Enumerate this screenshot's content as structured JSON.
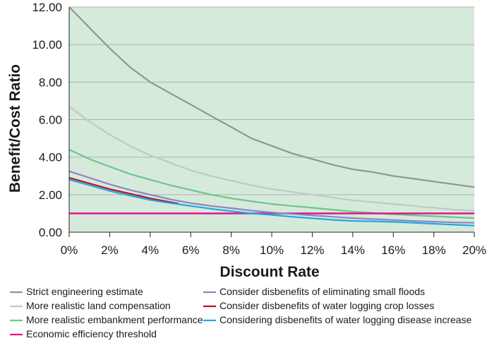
{
  "chart_data": {
    "type": "line",
    "xlabel": "Discount Rate",
    "ylabel": "Benefit/Cost Ratio",
    "xlim": [
      0,
      20
    ],
    "ylim": [
      0,
      12
    ],
    "x_ticks": [
      0,
      2,
      4,
      6,
      8,
      10,
      12,
      14,
      16,
      18,
      20
    ],
    "x_tick_labels": [
      "0%",
      "2%",
      "4%",
      "6%",
      "8%",
      "10%",
      "12%",
      "14%",
      "16%",
      "18%",
      "20%"
    ],
    "y_ticks": [
      0,
      2,
      4,
      6,
      8,
      10,
      12
    ],
    "y_tick_labels": [
      "0.00",
      "2.00",
      "4.00",
      "6.00",
      "8.00",
      "10.00",
      "12.00"
    ],
    "grid": "horizontal",
    "plot_background": "#d6eadb",
    "legend_position": "bottom",
    "series": [
      {
        "name": "Strict engineering estimate",
        "color": "#8e9593",
        "points": [
          [
            0,
            12.0
          ],
          [
            1,
            10.9
          ],
          [
            2,
            9.8
          ],
          [
            3,
            8.8
          ],
          [
            4,
            8.0
          ],
          [
            5,
            7.4
          ],
          [
            6,
            6.8
          ],
          [
            7,
            6.2
          ],
          [
            8,
            5.6
          ],
          [
            9,
            5.0
          ],
          [
            10,
            4.6
          ],
          [
            11,
            4.2
          ],
          [
            12,
            3.9
          ],
          [
            13,
            3.6
          ],
          [
            14,
            3.35
          ],
          [
            15,
            3.2
          ],
          [
            16,
            3.0
          ],
          [
            17,
            2.85
          ],
          [
            18,
            2.7
          ],
          [
            19,
            2.55
          ],
          [
            20,
            2.4
          ]
        ]
      },
      {
        "name": "More realistic land compensation",
        "color": "#c3c7c5",
        "points": [
          [
            0,
            6.7
          ],
          [
            1,
            5.9
          ],
          [
            2,
            5.2
          ],
          [
            3,
            4.6
          ],
          [
            4,
            4.1
          ],
          [
            5,
            3.7
          ],
          [
            6,
            3.3
          ],
          [
            7,
            3.0
          ],
          [
            8,
            2.75
          ],
          [
            9,
            2.5
          ],
          [
            10,
            2.3
          ],
          [
            11,
            2.15
          ],
          [
            12,
            2.0
          ],
          [
            13,
            1.85
          ],
          [
            14,
            1.7
          ],
          [
            15,
            1.6
          ],
          [
            16,
            1.5
          ],
          [
            17,
            1.4
          ],
          [
            18,
            1.3
          ],
          [
            19,
            1.2
          ],
          [
            20,
            1.15
          ]
        ]
      },
      {
        "name": "More realistic embankment performance",
        "color": "#6dc58e",
        "points": [
          [
            0,
            4.4
          ],
          [
            1,
            3.9
          ],
          [
            2,
            3.5
          ],
          [
            3,
            3.1
          ],
          [
            4,
            2.8
          ],
          [
            5,
            2.5
          ],
          [
            6,
            2.25
          ],
          [
            7,
            2.0
          ],
          [
            8,
            1.8
          ],
          [
            9,
            1.65
          ],
          [
            10,
            1.5
          ],
          [
            11,
            1.4
          ],
          [
            12,
            1.3
          ],
          [
            13,
            1.2
          ],
          [
            14,
            1.1
          ],
          [
            15,
            1.02
          ],
          [
            16,
            0.95
          ],
          [
            17,
            0.9
          ],
          [
            18,
            0.85
          ],
          [
            19,
            0.8
          ],
          [
            20,
            0.75
          ]
        ]
      },
      {
        "name": "Economic efficiency threshold",
        "color": "#e2158e",
        "points": [
          [
            0,
            1.0
          ],
          [
            20,
            1.0
          ]
        ]
      },
      {
        "name": "Consider disbenefits of eliminating small floods",
        "color": "#8d86c2",
        "points": [
          [
            0,
            3.25
          ],
          [
            1,
            2.9
          ],
          [
            2,
            2.55
          ],
          [
            3,
            2.25
          ],
          [
            4,
            2.0
          ],
          [
            5,
            1.75
          ],
          [
            6,
            1.55
          ],
          [
            7,
            1.4
          ],
          [
            8,
            1.28
          ],
          [
            9,
            1.15
          ],
          [
            10,
            1.05
          ],
          [
            11,
            0.97
          ],
          [
            12,
            0.9
          ],
          [
            13,
            0.82
          ],
          [
            14,
            0.75
          ],
          [
            15,
            0.7
          ],
          [
            16,
            0.65
          ],
          [
            17,
            0.6
          ],
          [
            18,
            0.56
          ],
          [
            19,
            0.52
          ],
          [
            20,
            0.5
          ]
        ]
      },
      {
        "name": "Consider disbenefits of water logging crop losses",
        "color": "#b2122b",
        "points": [
          [
            0,
            2.9
          ],
          [
            1,
            2.6
          ],
          [
            2,
            2.3
          ],
          [
            3,
            2.05
          ],
          [
            4,
            1.8
          ],
          [
            5,
            1.6
          ],
          [
            5.4,
            1.52
          ]
        ]
      },
      {
        "name": "Considering disbenefits of water logging disease increase",
        "color": "#22a6e2",
        "points": [
          [
            0,
            2.8
          ],
          [
            1,
            2.5
          ],
          [
            2,
            2.2
          ],
          [
            3,
            1.95
          ],
          [
            4,
            1.72
          ],
          [
            5,
            1.55
          ],
          [
            6,
            1.4
          ],
          [
            7,
            1.25
          ],
          [
            8,
            1.12
          ],
          [
            9,
            1.0
          ],
          [
            10,
            0.92
          ],
          [
            11,
            0.82
          ],
          [
            12,
            0.74
          ],
          [
            13,
            0.66
          ],
          [
            14,
            0.6
          ],
          [
            15,
            0.58
          ],
          [
            16,
            0.55
          ],
          [
            17,
            0.5
          ],
          [
            18,
            0.45
          ],
          [
            19,
            0.4
          ],
          [
            20,
            0.35
          ]
        ]
      }
    ]
  }
}
